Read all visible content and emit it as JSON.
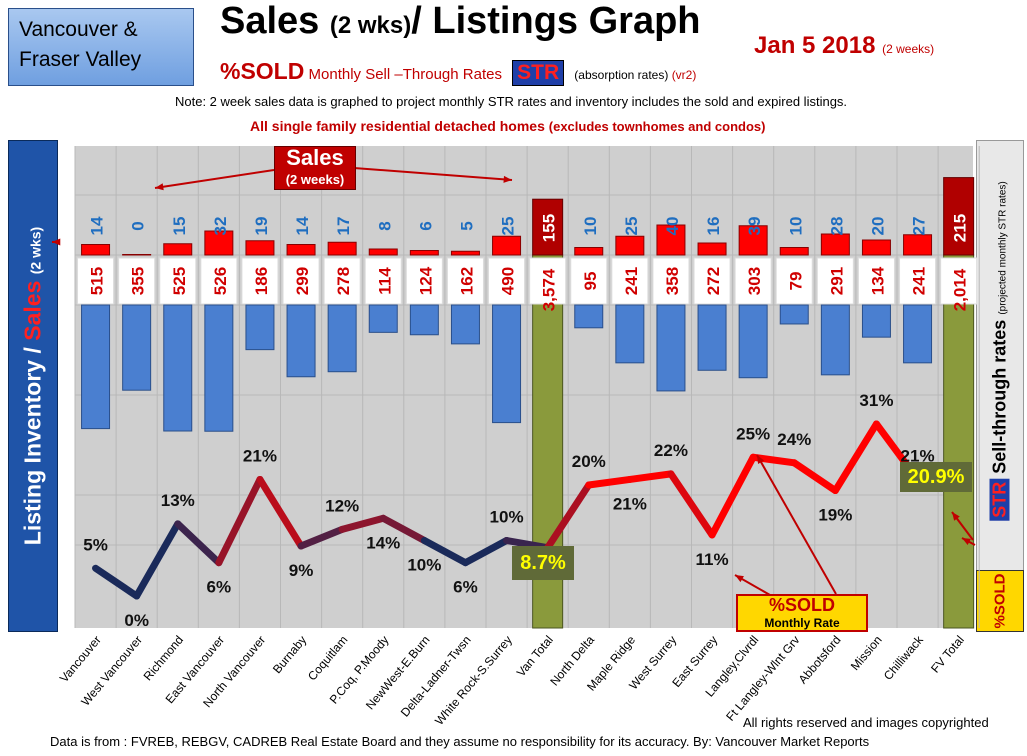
{
  "header": {
    "region_line1": "Vancouver &",
    "region_line2": "Fraser Valley",
    "title_part1": "Sales",
    "title_part2": "(2 wks)",
    "title_part3": "/ Listings Graph",
    "date": "Jan 5  2018",
    "date_note": "(2 weeks)",
    "subtitle_sold": "%SOLD",
    "subtitle_rates": "Monthly Sell –Through Rates",
    "subtitle_str": "STR",
    "subtitle_abs": "(absorption rates)",
    "subtitle_ver": "(vr2)",
    "note": "Note: 2 week sales data is graphed to project monthly STR rates and inventory includes the sold and expired listings.",
    "detached": "All single family residential detached homes",
    "detached_note": "(excludes townhomes and condos)"
  },
  "labels": {
    "left_axis_part1": "Listing Inventory /",
    "left_axis_part2": "Sales",
    "left_axis_part3": "(2  wks)",
    "right_axis_str": "STR",
    "right_axis_text": "Sell-through rates",
    "right_axis_note": "(projected  monthly STR rates)",
    "right_axis_sold": "%SOLD",
    "sales_badge": "Sales",
    "sales_badge_sub": "(2 weeks)",
    "sold_box": "%SOLD",
    "sold_box_sub": "Monthly Rate",
    "van_total_rate": "8.7%",
    "fv_total_rate": "20.9%"
  },
  "footer": {
    "copyright": "All rights reserved and  images copyrighted",
    "source": "Data is from : FVREB, REBGV, CADREB Real Estate Board and they assume  no responsibility for its accuracy.  By:  Vancouver Market Reports"
  },
  "chart_data": {
    "type": "bar",
    "categories": [
      "Vancouver",
      "West Vancouver",
      "Richmond",
      "East Vancouver",
      "North Vancouver",
      "Burnaby",
      "Coquitlam",
      "P.Coq, P.Moody",
      "NewWest-E.Burn",
      "Delta-Ladner-Twsn",
      "White Rock-S.Surrey",
      "Van Total",
      "North Delta",
      "Maple Ridge",
      "West Surrey",
      "East Surrey",
      "Langley,Clvrdl",
      "Ft Langley-Wlnt Grv",
      "Abbotsford",
      "Mission",
      "Chilliwack",
      "FV Total"
    ],
    "series": [
      {
        "name": "Sales",
        "values": [
          14,
          0,
          15,
          32,
          19,
          14,
          17,
          8,
          6,
          5,
          25,
          155,
          10,
          25,
          40,
          16,
          39,
          10,
          28,
          20,
          27,
          215
        ]
      },
      {
        "name": "Listing Inventory",
        "values": [
          515,
          355,
          525,
          526,
          186,
          299,
          278,
          114,
          124,
          162,
          490,
          3574,
          95,
          241,
          358,
          272,
          303,
          79,
          291,
          134,
          241,
          2014
        ]
      },
      {
        "name": "%SOLD",
        "values": [
          5,
          0,
          13,
          6,
          21,
          9,
          12,
          14,
          10,
          6,
          10,
          8.7,
          20,
          21,
          22,
          11,
          25,
          24,
          19,
          31,
          21,
          20.9
        ]
      }
    ],
    "sales_labels": [
      "14",
      "0",
      "15",
      "32",
      "19",
      "14",
      "17",
      "8",
      "6",
      "5",
      "25",
      "155",
      "10",
      "25",
      "40",
      "16",
      "39",
      "10",
      "28",
      "20",
      "27",
      "215"
    ],
    "inventory_labels": [
      "515",
      "355",
      "525",
      "526",
      "186",
      "299",
      "278",
      "114",
      "124",
      "162",
      "490",
      "3,574",
      "95",
      "241",
      "358",
      "272",
      "303",
      "79",
      "291",
      "134",
      "241",
      "2,014"
    ],
    "pct_labels": [
      "5%",
      "0%",
      "13%",
      "6%",
      "21%",
      "9%",
      "12%",
      "14%",
      "10%",
      "6%",
      "10%",
      "",
      "20%",
      "21%",
      "22%",
      "11%",
      "25%",
      "24%",
      "19%",
      "31%",
      "21%",
      ""
    ],
    "colors": {
      "sales": "#ff0000",
      "inventory": "#4a7fd0",
      "total_bar": "#8a9a3c",
      "line_low": "#1a2a5a",
      "line_high": "#ff0000"
    }
  }
}
